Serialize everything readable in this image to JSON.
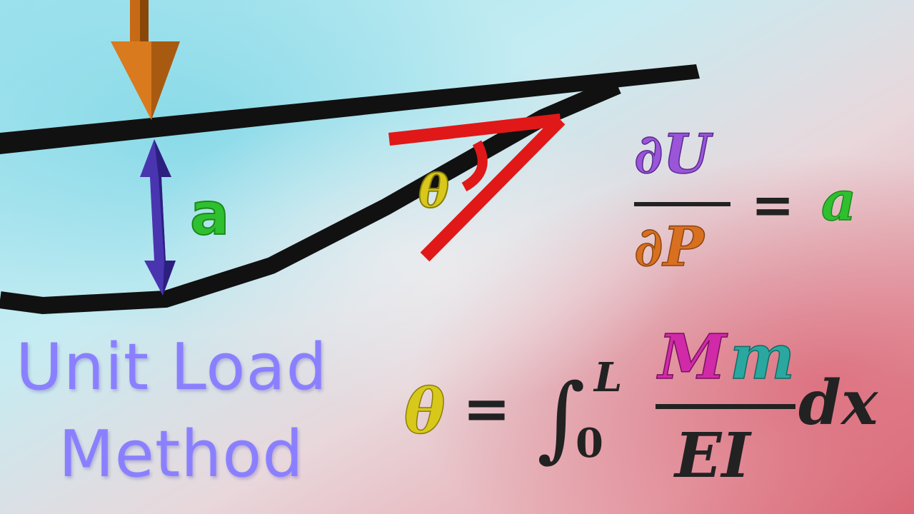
{
  "title": {
    "line1": "Unit Load",
    "line2": "Method"
  },
  "labels": {
    "deflection": "a",
    "angle": "θ"
  },
  "equation_energy": {
    "numerator": "∂U",
    "denominator": "∂P",
    "equals": "=",
    "result": "a"
  },
  "equation_integral": {
    "lhs": "θ",
    "equals": "=",
    "integral": "∫",
    "upper_limit": "L",
    "lower_limit": "0",
    "numerator_M": "M",
    "numerator_m": "m",
    "denominator": "EI",
    "differential": "dx"
  },
  "colors": {
    "load_arrow": "#d97a1f",
    "deflection_arrow": "#4a35b0",
    "label_a": "#2fc02f",
    "angle_label": "#d8c81a",
    "tangent_lines": "#e01818",
    "beam": "#111111",
    "partial_U": "#9a55d8",
    "partial_P": "#d87020",
    "M_color": "#d02aa8",
    "m_color": "#2aa8a0"
  }
}
